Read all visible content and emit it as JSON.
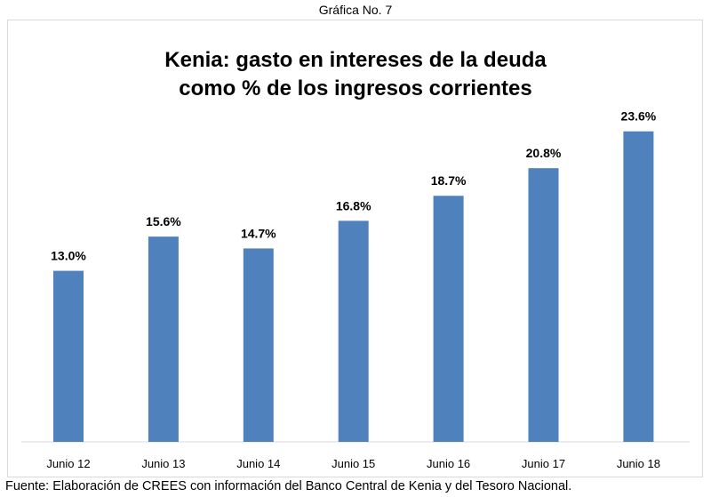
{
  "caption": "Gráfica No. 7",
  "source": "Fuente: Elaboración de CREES con información del Banco Central de Kenia y del Tesoro Nacional.",
  "chart_data": {
    "type": "bar",
    "title": [
      "Kenia: gasto en intereses de la deuda",
      "como % de los ingresos corrientes"
    ],
    "categories": [
      "Junio 12",
      "Junio 13",
      "Junio 14",
      "Junio 15",
      "Junio 16",
      "Junio 17",
      "Junio 18"
    ],
    "values": [
      13.0,
      15.6,
      14.7,
      16.8,
      18.7,
      20.8,
      23.6
    ],
    "labels": [
      "13.0%",
      "15.6%",
      "14.7%",
      "16.8%",
      "18.7%",
      "20.8%",
      "23.6%"
    ],
    "xlabel": "",
    "ylabel": "",
    "ylim": [
      0,
      24
    ],
    "grid": false,
    "bar_color": "#4f81bd"
  }
}
